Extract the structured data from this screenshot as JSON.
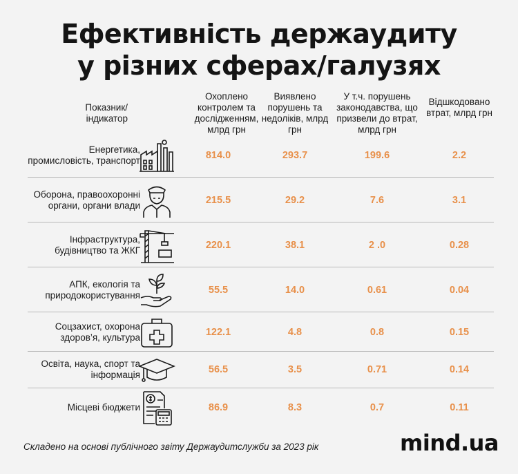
{
  "title_line1": "Ефективність держаудиту",
  "title_line2": "у різних сферах/галузях",
  "headers": {
    "indicator": "Показник/ індикатор",
    "col1": "Охоплено контролем та дослідженням, млрд грн",
    "col2": "Виявлено порушень та недоліків, млрд грн",
    "col3": "У т.ч. порушень законодавства, що призвели до втрат, млрд грн",
    "col4": "Відшкодовано втрат, млрд грн"
  },
  "rows": [
    {
      "label": "Енергетика, промисловість, транспорт",
      "icon": "factory-icon",
      "c1": "814.0",
      "c2": "293.7",
      "c3": "199.6",
      "c4": "2.2"
    },
    {
      "label": "Оборона, правоохоронні органи, органи влади",
      "icon": "officer-icon",
      "c1": "215.5",
      "c2": "29.2",
      "c3": "7.6",
      "c4": "3.1"
    },
    {
      "label": "Інфраструктура, будівництво та ЖКГ",
      "icon": "crane-icon",
      "c1": "220.1",
      "c2": "38.1",
      "c3": "2 .0",
      "c4": "0.28"
    },
    {
      "label": "АПК, екологія та природокористування",
      "icon": "plant-in-hand-icon",
      "c1": "55.5",
      "c2": "14.0",
      "c3": "0.61",
      "c4": "0.04"
    },
    {
      "label": "Соцзахист, охорона здоров’я, культура",
      "icon": "medical-kit-icon",
      "c1": "122.1",
      "c2": "4.8",
      "c3": "0.8",
      "c4": "0.15"
    },
    {
      "label": "Освіта, наука, спорт та інформація",
      "icon": "graduation-cap-icon",
      "c1": "56.5",
      "c2": "3.5",
      "c3": "0.71",
      "c4": "0.14"
    },
    {
      "label": "Місцеві бюджети",
      "icon": "budget-calculator-icon",
      "c1": "86.9",
      "c2": "8.3",
      "c3": "0.7",
      "c4": "0.11"
    }
  ],
  "footer_note": "Складено на основі публічного звіту Держаудитслужби за 2023 рік",
  "brand": "mind.ua",
  "colors": {
    "value": "#e8904a",
    "background": "#f3f3f3",
    "divider": "#b8b8b8"
  },
  "chart_data": {
    "type": "table",
    "title": "Ефективність держаудиту у різних сферах/галузях",
    "columns": [
      "Показник/ індикатор",
      "Охоплено контролем та дослідженням, млрд грн",
      "Виявлено порушень та недоліків, млрд грн",
      "У т.ч. порушень законодавства, що призвели до втрат, млрд грн",
      "Відшкодовано втрат, млрд грн"
    ],
    "categories": [
      "Енергетика, промисловість, транспорт",
      "Оборона, правоохоронні органи, органи влади",
      "Інфраструктура, будівництво та ЖКГ",
      "АПК, екологія та природокористування",
      "Соцзахист, охорона здоров’я, культура",
      "Освіта, наука, спорт та інформація",
      "Місцеві бюджети"
    ],
    "series": [
      {
        "name": "Охоплено контролем та дослідженням, млрд грн",
        "values": [
          814.0,
          215.5,
          220.1,
          55.5,
          122.1,
          56.5,
          86.9
        ]
      },
      {
        "name": "Виявлено порушень та недоліків, млрд грн",
        "values": [
          293.7,
          29.2,
          38.1,
          14.0,
          4.8,
          3.5,
          8.3
        ]
      },
      {
        "name": "У т.ч. порушень законодавства, що призвели до втрат, млрд грн",
        "values": [
          199.6,
          7.6,
          2.0,
          0.61,
          0.8,
          0.71,
          0.7
        ]
      },
      {
        "name": "Відшкодовано втрат, млрд грн",
        "values": [
          2.2,
          3.1,
          0.28,
          0.04,
          0.15,
          0.14,
          0.11
        ]
      }
    ]
  }
}
